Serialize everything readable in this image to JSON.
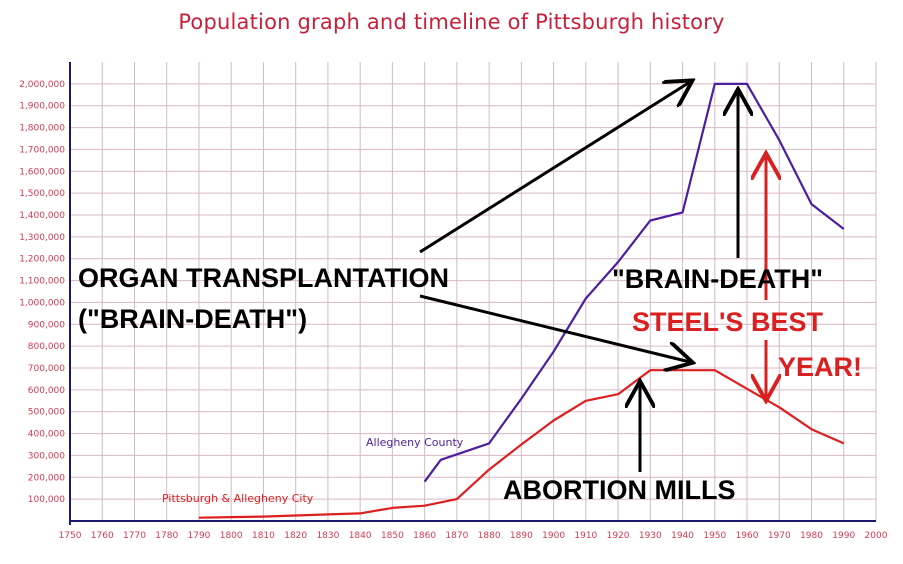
{
  "title": "Population graph and timeline of Pittsburgh history",
  "colors": {
    "title": "#c9203a",
    "grid": "#d7b8c6",
    "axis": "#1c1a6e",
    "tick": "#d23a54",
    "allegheny_county": "#4b1fa0",
    "pittsburgh": "#dd1f1f",
    "annotation_black": "#000000",
    "annotation_red": "#d92020"
  },
  "chart_data": {
    "type": "line",
    "title": "Population graph and timeline of Pittsburgh history",
    "xlim": [
      1750,
      2000
    ],
    "ylim": [
      0,
      2100000
    ],
    "grid": true,
    "x_ticks": [
      1750,
      1760,
      1770,
      1780,
      1790,
      1800,
      1810,
      1820,
      1830,
      1840,
      1850,
      1860,
      1870,
      1880,
      1890,
      1900,
      1910,
      1920,
      1930,
      1940,
      1950,
      1960,
      1970,
      1980,
      1990,
      2000
    ],
    "y_ticks": [
      100000,
      200000,
      300000,
      400000,
      500000,
      600000,
      700000,
      800000,
      900000,
      1000000,
      1100000,
      1200000,
      1300000,
      1400000,
      1500000,
      1600000,
      1700000,
      1800000,
      1900000,
      2000000
    ],
    "y_tick_labels": [
      "100,000",
      "200,000",
      "300,000",
      "400,000",
      "500,000",
      "600,000",
      "700,000",
      "800,000",
      "900,000",
      "1,000,000",
      "1,100,000",
      "1,200,000",
      "1,300,000",
      "1,400,000",
      "1,500,000",
      "1,600,000",
      "1,700,000",
      "1,800,000",
      "1,900,000",
      "2,000,000"
    ],
    "series": [
      {
        "name": "Allegheny County",
        "color": "#4b1fa0",
        "points": [
          [
            1860,
            180000
          ],
          [
            1865,
            280000
          ],
          [
            1880,
            355000
          ],
          [
            1890,
            560000
          ],
          [
            1900,
            775000
          ],
          [
            1910,
            1018000
          ],
          [
            1920,
            1185000
          ],
          [
            1930,
            1375000
          ],
          [
            1940,
            1412000
          ],
          [
            1950,
            2000000
          ],
          [
            1960,
            2000000
          ],
          [
            1970,
            1742000
          ],
          [
            1980,
            1450000
          ],
          [
            1990,
            1336000
          ]
        ]
      },
      {
        "name": "Pittsburgh & Allegheny City",
        "color": "#dd1f1f",
        "points": [
          [
            1790,
            15000
          ],
          [
            1800,
            18000
          ],
          [
            1810,
            20000
          ],
          [
            1820,
            25000
          ],
          [
            1830,
            30000
          ],
          [
            1840,
            35000
          ],
          [
            1850,
            60000
          ],
          [
            1860,
            70000
          ],
          [
            1870,
            100000
          ],
          [
            1880,
            235000
          ],
          [
            1890,
            350000
          ],
          [
            1900,
            460000
          ],
          [
            1910,
            550000
          ],
          [
            1920,
            580000
          ],
          [
            1930,
            690000
          ],
          [
            1940,
            690000
          ],
          [
            1950,
            690000
          ],
          [
            1960,
            605000
          ],
          [
            1970,
            520000
          ],
          [
            1980,
            420000
          ],
          [
            1990,
            355000
          ]
        ]
      }
    ]
  },
  "annotations": {
    "organ_line1": "ORGAN TRANSPLANTATION",
    "organ_line2": "(\"BRAIN-DEATH\")",
    "brain_death": "\"BRAIN-DEATH\"",
    "steel_line1": "STEEL'S BEST",
    "steel_line2": "YEAR!",
    "abortion": "ABORTION MILLS"
  }
}
